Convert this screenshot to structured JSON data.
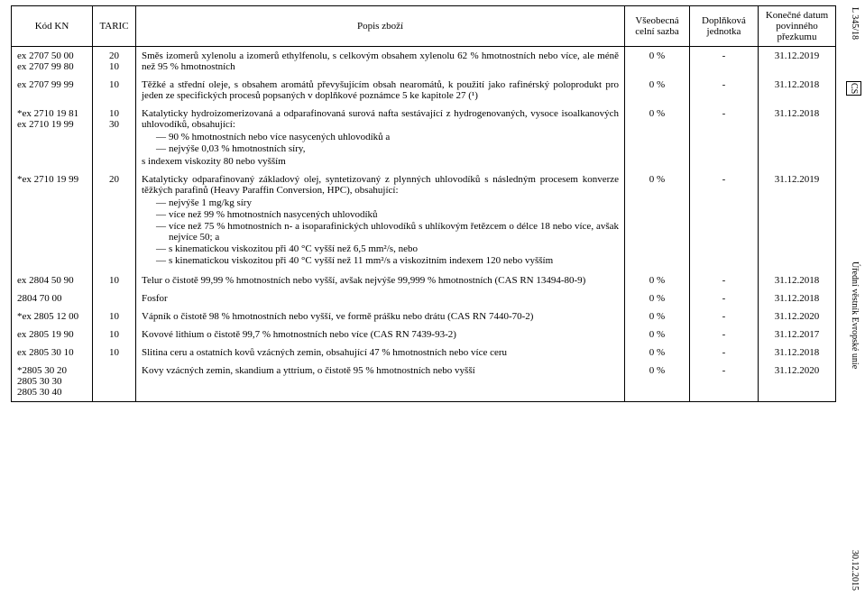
{
  "side_labels": {
    "top": "L 345/18",
    "cs": "CS",
    "mid": "Úřední věstník Evropské unie",
    "bot": "30.12.2015"
  },
  "headers": {
    "kn": "Kód KN",
    "taric": "TARIC",
    "desc": "Popis zboží",
    "rate": "Všeobecná celní sazba",
    "unit": "Doplňková jednotka",
    "date": "Konečné datum povinného přezkumu"
  },
  "rows": [
    {
      "kn": "ex 2707 50 00\nex 2707 99 80",
      "taric": "20\n10",
      "desc_text": "Směs izomerů xylenolu a izomerů ethylfenolu, s celkovým obsahem xylenolu 62 % hmotnostních nebo více, ale méně než 95 % hmotnostních",
      "rate": "0 %",
      "unit": "-",
      "date": "31.12.2019"
    },
    {
      "kn": "ex 2707 99 99",
      "taric": "10",
      "desc_text": "Těžké a střední oleje, s obsahem aromátů převyšujícím obsah nearomátů, k použití jako rafinérský poloprodukt pro jeden ze specifických procesů popsaných v doplňkové poznámce 5 ke kapitole 27 (¹)",
      "rate": "0 %",
      "unit": "-",
      "date": "31.12.2018"
    },
    {
      "kn": "*ex 2710 19 81\n ex 2710 19 99",
      "taric": "10\n30",
      "desc_lead": "Katalyticky hydroizomerizovaná a odparafinovaná surová nafta sestávající z hydrogenovaných, vysoce isoalkanových uhlovodíků, obsahující:",
      "bullets": [
        "90 % hmotnostních nebo více nasycených uhlovodíků a",
        "nejvýše 0,03 % hmotnostních síry,"
      ],
      "desc_tail": "s indexem viskozity 80 nebo vyšším",
      "rate": "0 %",
      "unit": "-",
      "date": "31.12.2018"
    },
    {
      "kn": "*ex 2710 19 99",
      "taric": "20",
      "desc_lead": "Katalyticky odparafinovaný základový olej, syntetizovaný z plynných uhlovodíků s následným procesem konverze těžkých parafinů (Heavy Paraffin Conversion, HPC), obsahující:",
      "bullets": [
        "nejvýše 1 mg/kg síry",
        "více než 99 % hmotnostních nasycených uhlovodíků",
        "více než 75 % hmotnostních n- a isoparafinických uhlovodíků s uhlíkovým řetězcem o délce 18 nebo více, avšak nejvíce 50; a",
        "s kinematickou viskozitou při 40 °C vyšší než 6,5 mm²/s, nebo",
        "s kinematickou viskozitou při 40 °C vyšší než 11 mm²/s a viskozitním indexem 120 nebo vyšším"
      ],
      "rate": "0 %",
      "unit": "-",
      "date": "31.12.2019"
    },
    {
      "kn": "ex 2804 50 90",
      "taric": "10",
      "desc_text": "Telur o čistotě 99,99 % hmotnostních nebo vyšší, avšak nejvýše 99,999 % hmotnostních (CAS RN 13494-80-9)",
      "rate": "0 %",
      "unit": "-",
      "date": "31.12.2018"
    },
    {
      "kn": "   2804 70 00",
      "taric": "",
      "desc_text": "Fosfor",
      "rate": "0 %",
      "unit": "-",
      "date": "31.12.2018"
    },
    {
      "kn": "*ex 2805 12 00",
      "taric": "10",
      "desc_text": "Vápník o čistotě 98 % hmotnostních nebo vyšší, ve formě prášku nebo drátu (CAS RN 7440-70-2)",
      "rate": "0 %",
      "unit": "-",
      "date": "31.12.2020"
    },
    {
      "kn": "ex 2805 19 90",
      "taric": "10",
      "desc_text": "Kovové lithium o čistotě 99,7 % hmotnostních nebo více (CAS RN 7439-93-2)",
      "rate": "0 %",
      "unit": "-",
      "date": "31.12.2017"
    },
    {
      "kn": "ex 2805 30 10",
      "taric": "10",
      "desc_text": "Slitina ceru a ostatních kovů vzácných zemin, obsahující 47 % hmotnostních nebo více ceru",
      "rate": "0 %",
      "unit": "-",
      "date": "31.12.2018"
    },
    {
      "kn": " *2805 30 20\n  2805 30 30\n  2805 30 40",
      "taric": "",
      "desc_text": "Kovy vzácných zemin, skandium a yttrium, o čistotě 95 % hmotnostních nebo vyšší",
      "rate": "0 %",
      "unit": "-",
      "date": "31.12.2020"
    }
  ]
}
